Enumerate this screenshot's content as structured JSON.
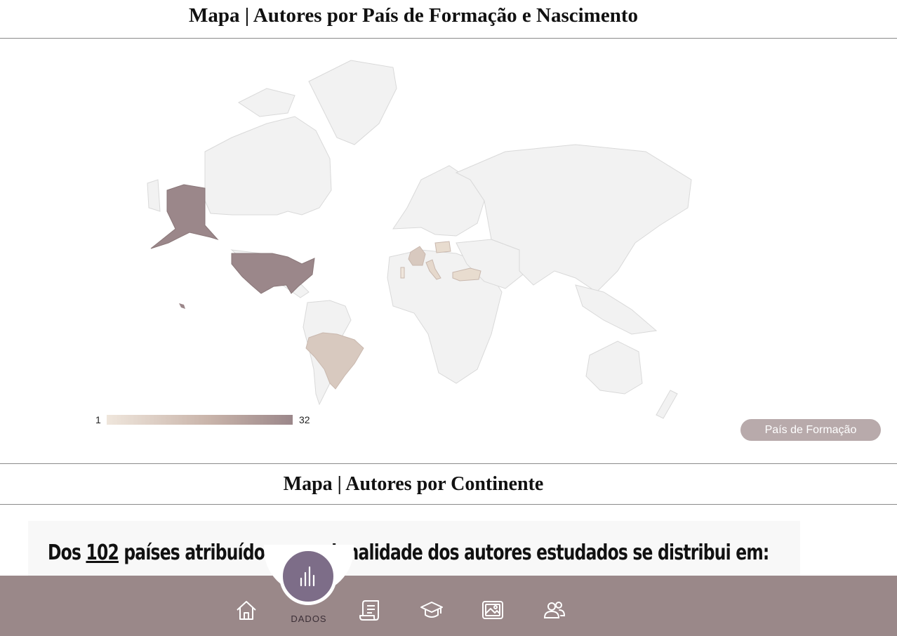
{
  "section1": {
    "title": "Mapa | Autores por País de Formação e Nascimento"
  },
  "map": {
    "legend": {
      "min": "1",
      "max": "32"
    },
    "colors": {
      "low": "#efe6dc",
      "mid": "#d8c9bf",
      "high": "#9b878a",
      "base": "#f2f2f2",
      "border": "#d9d9d9"
    },
    "highlighted_countries": [
      "United States",
      "Brazil",
      "France",
      "Italy",
      "Poland",
      "Turkey",
      "Portugal"
    ],
    "toggle_button": "País de Formação"
  },
  "section2": {
    "title": "Mapa | Autores por Continente"
  },
  "summary": {
    "prefix": "Dos ",
    "count": "102",
    "suffix": " países atribuídos, a nacionalidade dos autores estudados se distribui em:"
  },
  "nav": {
    "active_label": "DADOS",
    "icons": [
      "home-icon",
      "scroll-icon",
      "graduation-cap-icon",
      "image-icon",
      "users-icon",
      "bar-chart-icon"
    ]
  }
}
